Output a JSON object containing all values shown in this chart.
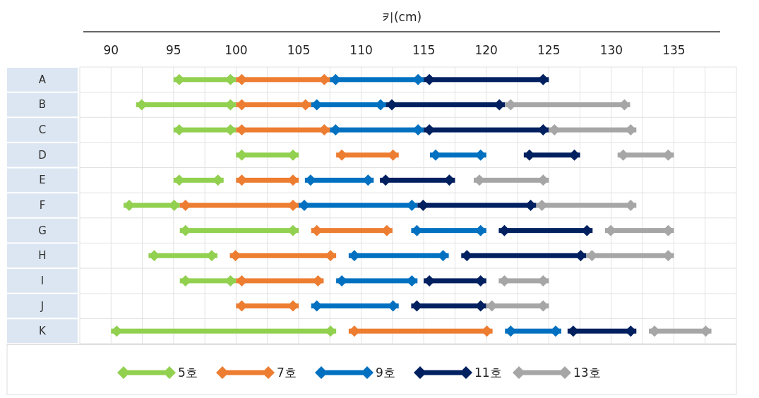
{
  "chart_data": {
    "type": "bar",
    "orientation": "horizontal",
    "xlabel": "키(cm)",
    "categories": [
      "A",
      "B",
      "C",
      "D",
      "E",
      "F",
      "G",
      "H",
      "I",
      "J",
      "K"
    ],
    "xlim": [
      87.5,
      140
    ],
    "xticks": [
      {
        "value": 87.5,
        "label": null
      },
      90,
      {
        "value": 92.5,
        "label": null
      },
      95,
      {
        "value": 97.5,
        "label": null
      },
      100,
      {
        "value": 102.5,
        "label": null
      },
      105,
      {
        "value": 107.5,
        "label": null
      },
      110,
      {
        "value": 112.5,
        "label": null
      },
      115,
      {
        "value": 117.5,
        "label": null
      },
      120,
      {
        "value": 122.5,
        "label": null
      },
      125,
      {
        "value": 127.5,
        "label": null
      },
      130,
      {
        "value": 132.5,
        "label": null
      },
      135,
      {
        "value": 137.5,
        "label": null
      },
      {
        "value": 140,
        "label": null
      }
    ],
    "grid": true,
    "legend": "bottom",
    "marker": "diamond",
    "series": [
      {
        "name": "5호",
        "color": "#92d050",
        "base": [
          95,
          92,
          95,
          100,
          95,
          91,
          95.5,
          93,
          95.5,
          null,
          90
        ],
        "values": [
          5,
          8,
          5,
          5,
          4,
          4.5,
          9.5,
          5.5,
          4.5,
          null,
          18
        ]
      },
      {
        "name": "7호",
        "color": "#ed7d31",
        "base": [
          100,
          100,
          100,
          108,
          100,
          95.5,
          106,
          99.5,
          100,
          100,
          109
        ],
        "values": [
          7.5,
          6,
          7.5,
          5,
          5,
          9.5,
          6.5,
          8.5,
          7,
          5,
          11.5
        ]
      },
      {
        "name": "9호",
        "color": "#0070c0",
        "base": [
          107.5,
          106,
          107.5,
          115.5,
          105.5,
          105,
          114,
          109,
          108,
          106,
          121.5
        ],
        "values": [
          7.5,
          6,
          7.5,
          4.5,
          5.5,
          9.5,
          6,
          8,
          6.5,
          7,
          4.5
        ]
      },
      {
        "name": "11호",
        "color": "#002060",
        "base": [
          115,
          112,
          115,
          123,
          111.5,
          114.5,
          121,
          118,
          115,
          114,
          126.5
        ],
        "values": [
          10,
          9.5,
          10,
          4.5,
          6,
          9.5,
          7.5,
          10,
          5,
          6,
          5.5
        ]
      },
      {
        "name": "13호",
        "color": "#a6a6a6",
        "base": [
          null,
          121.5,
          125,
          130.5,
          119,
          124,
          129.5,
          128,
          121,
          120,
          133
        ],
        "values": [
          null,
          10,
          7,
          4.5,
          6,
          8,
          5.5,
          7,
          4,
          5,
          5
        ]
      }
    ]
  }
}
